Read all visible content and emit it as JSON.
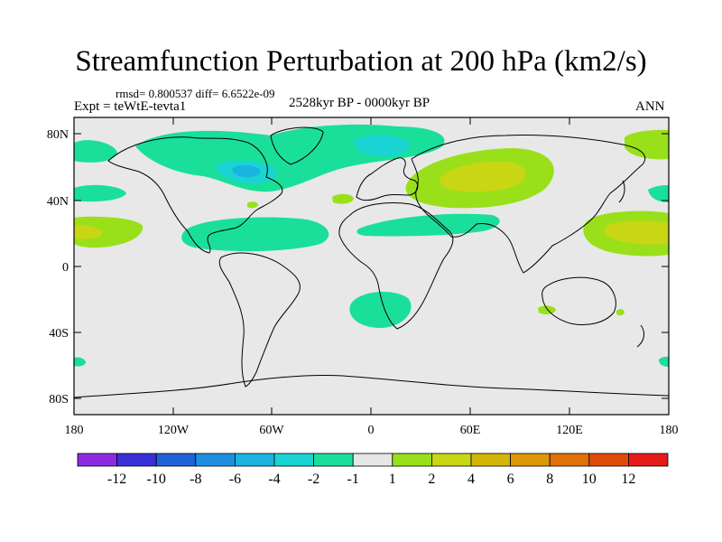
{
  "title": "Streamfunction Perturbation at 200 hPa (km2/s)",
  "stats": "rmsd= 0.800537 diff= 6.6522e-09",
  "period": "2528kyr BP - 0000kyr BP",
  "experiment": "Expt = teWtE-tevta1",
  "season": "ANN",
  "map": {
    "background_color": "#e8e8e8",
    "lat_ticks": [
      "80N",
      "40N",
      "0",
      "40S",
      "80S"
    ],
    "lon_ticks": [
      "180",
      "120W",
      "60W",
      "0",
      "60E",
      "120E",
      "180"
    ]
  },
  "colorbar": {
    "colors": [
      "#8c2be2",
      "#3a2fd6",
      "#1f63d6",
      "#1f8fe0",
      "#19b5e0",
      "#1ad3d3",
      "#1adf9b",
      "#e6e6e6",
      "#99e01a",
      "#c8d614",
      "#d4b50a",
      "#dc9608",
      "#e07008",
      "#e04a08",
      "#e61a1a"
    ],
    "labels": [
      "-12",
      "-10",
      "-8",
      "-6",
      "-4",
      "-2",
      "-1",
      "1",
      "2",
      "4",
      "6",
      "8",
      "10",
      "12"
    ]
  },
  "fill_colors": {
    "neg_1": "#1adf9b",
    "neg_2": "#1ad3d3",
    "neg_4": "#19b5e0",
    "pos_1": "#99e01a",
    "pos_2": "#c8d614"
  }
}
